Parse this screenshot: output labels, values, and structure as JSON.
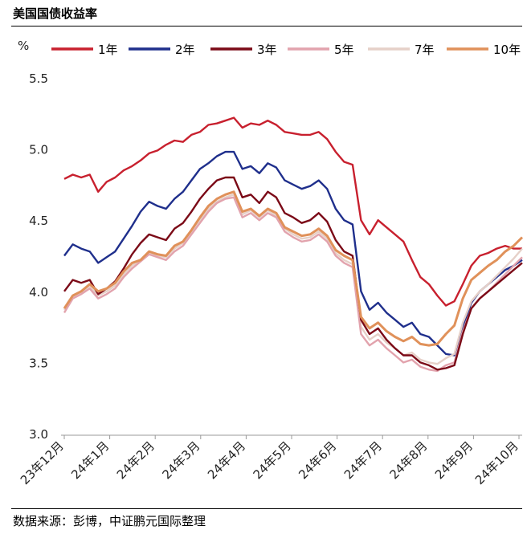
{
  "source": "数据来源：彭博，中证鹏元国际整理",
  "chart_data": {
    "type": "line",
    "title": "美国国债收益率",
    "ylabel": "%",
    "xlabel": "",
    "ylim": [
      3.0,
      5.5
    ],
    "yticks": [
      "3.0",
      "3.5",
      "4.0",
      "4.5",
      "5.0",
      "5.5"
    ],
    "grid": false,
    "legend_position": "top",
    "x_ticks": [
      "23年12月",
      "24年1月",
      "24年2月",
      "24年3月",
      "24年4月",
      "24年5月",
      "24年6月",
      "24年7月",
      "24年8月",
      "24年9月",
      "24年10月"
    ],
    "series": [
      {
        "name": "1年",
        "color": "#c8202e",
        "values": [
          4.79,
          4.82,
          4.8,
          4.82,
          4.7,
          4.77,
          4.8,
          4.85,
          4.88,
          4.92,
          4.97,
          4.99,
          5.03,
          5.06,
          5.05,
          5.1,
          5.12,
          5.17,
          5.18,
          5.2,
          5.22,
          5.15,
          5.18,
          5.17,
          5.2,
          5.17,
          5.12,
          5.11,
          5.1,
          5.1,
          5.12,
          5.07,
          4.98,
          4.91,
          4.89,
          4.5,
          4.4,
          4.5,
          4.45,
          4.4,
          4.35,
          4.22,
          4.1,
          4.05,
          3.97,
          3.9,
          3.93,
          4.05,
          4.18,
          4.25,
          4.27,
          4.3,
          4.32,
          4.3,
          4.3
        ]
      },
      {
        "name": "2年",
        "color": "#1f2f8c",
        "values": [
          4.25,
          4.33,
          4.3,
          4.28,
          4.2,
          4.24,
          4.28,
          4.37,
          4.46,
          4.56,
          4.63,
          4.6,
          4.58,
          4.65,
          4.7,
          4.78,
          4.86,
          4.9,
          4.95,
          4.98,
          4.98,
          4.86,
          4.88,
          4.83,
          4.9,
          4.87,
          4.78,
          4.75,
          4.72,
          4.74,
          4.78,
          4.72,
          4.58,
          4.5,
          4.47,
          4.0,
          3.87,
          3.92,
          3.85,
          3.8,
          3.75,
          3.78,
          3.7,
          3.68,
          3.62,
          3.56,
          3.55,
          3.75,
          3.92,
          4.0,
          4.05,
          4.1,
          4.15,
          4.18,
          4.22
        ]
      },
      {
        "name": "3年",
        "color": "#7b0a17",
        "values": [
          4.0,
          4.08,
          4.06,
          4.08,
          3.98,
          4.02,
          4.07,
          4.16,
          4.26,
          4.34,
          4.4,
          4.38,
          4.36,
          4.44,
          4.48,
          4.56,
          4.65,
          4.72,
          4.78,
          4.8,
          4.8,
          4.66,
          4.68,
          4.62,
          4.7,
          4.66,
          4.55,
          4.52,
          4.48,
          4.5,
          4.55,
          4.49,
          4.36,
          4.28,
          4.25,
          3.8,
          3.7,
          3.74,
          3.66,
          3.6,
          3.55,
          3.55,
          3.5,
          3.48,
          3.45,
          3.46,
          3.48,
          3.7,
          3.88,
          3.95,
          4.0,
          4.05,
          4.1,
          4.15,
          4.2
        ]
      },
      {
        "name": "5年",
        "color": "#e2a3ad",
        "values": [
          3.85,
          3.95,
          3.98,
          4.02,
          3.95,
          3.98,
          4.02,
          4.1,
          4.16,
          4.21,
          4.26,
          4.24,
          4.22,
          4.28,
          4.32,
          4.4,
          4.48,
          4.56,
          4.62,
          4.65,
          4.66,
          4.52,
          4.55,
          4.5,
          4.55,
          4.52,
          4.42,
          4.38,
          4.35,
          4.36,
          4.4,
          4.35,
          4.25,
          4.2,
          4.17,
          3.7,
          3.62,
          3.66,
          3.6,
          3.55,
          3.5,
          3.52,
          3.47,
          3.45,
          3.44,
          3.48,
          3.5,
          3.72,
          3.88,
          3.95,
          4.0,
          4.06,
          4.12,
          4.18,
          4.24
        ]
      },
      {
        "name": "7年",
        "color": "#e6d0c8",
        "values": [
          3.87,
          3.96,
          3.99,
          4.04,
          3.97,
          4.0,
          4.04,
          4.12,
          4.18,
          4.22,
          4.27,
          4.25,
          4.24,
          4.3,
          4.34,
          4.42,
          4.5,
          4.58,
          4.63,
          4.66,
          4.68,
          4.54,
          4.57,
          4.52,
          4.57,
          4.53,
          4.44,
          4.4,
          4.37,
          4.38,
          4.42,
          4.37,
          4.27,
          4.22,
          4.19,
          3.75,
          3.66,
          3.7,
          3.64,
          3.6,
          3.55,
          3.57,
          3.52,
          3.5,
          3.49,
          3.53,
          3.56,
          3.78,
          3.93,
          4.0,
          4.05,
          4.11,
          4.17,
          4.23,
          4.3
        ]
      },
      {
        "name": "10年",
        "color": "#e0915a",
        "values": [
          3.88,
          3.97,
          4.0,
          4.05,
          4.0,
          4.02,
          4.06,
          4.14,
          4.2,
          4.22,
          4.28,
          4.26,
          4.25,
          4.32,
          4.35,
          4.43,
          4.52,
          4.6,
          4.65,
          4.68,
          4.7,
          4.56,
          4.58,
          4.53,
          4.58,
          4.55,
          4.45,
          4.42,
          4.39,
          4.4,
          4.44,
          4.39,
          4.29,
          4.25,
          4.22,
          3.82,
          3.74,
          3.78,
          3.72,
          3.68,
          3.65,
          3.68,
          3.63,
          3.62,
          3.63,
          3.7,
          3.76,
          3.95,
          4.08,
          4.13,
          4.18,
          4.22,
          4.28,
          4.32,
          4.38
        ]
      }
    ]
  }
}
